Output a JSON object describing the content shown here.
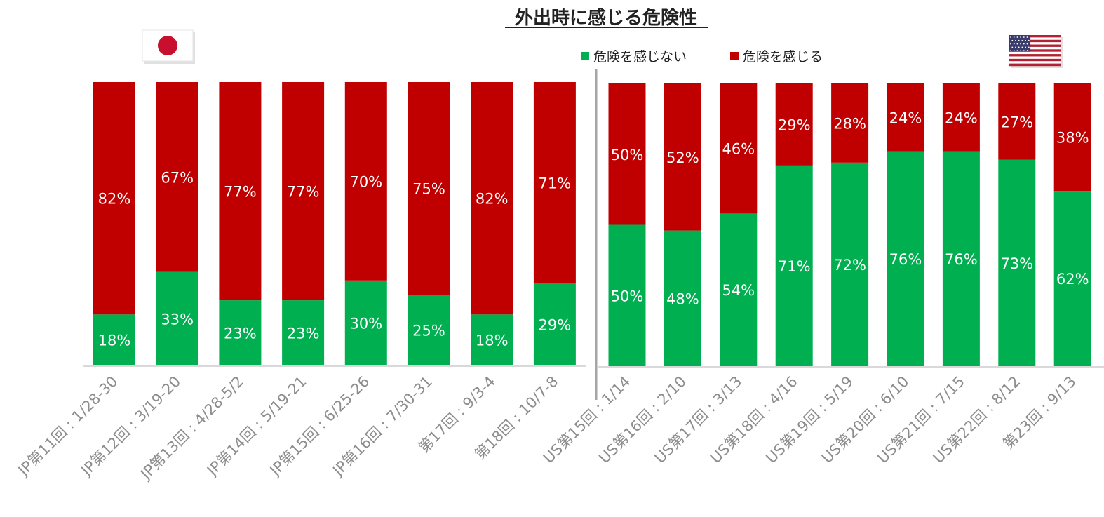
{
  "chart_data": {
    "type": "bar",
    "title": "外出時に感じる危険性",
    "legend": [
      {
        "label": "危険を感じない",
        "color": "#00b050"
      },
      {
        "label": "危険を感じる",
        "color": "#c00000"
      }
    ],
    "legend_position": "top",
    "grid": false,
    "panels": [
      {
        "name": "JP",
        "flag": "japan-flag",
        "categories": [
          "JP第11回 : 1/28-30",
          "JP第12回 : 3/19-20",
          "JP第13回 : 4/28-5/2",
          "JP第14回 : 5/19-21",
          "JP第15回 : 6/25-26",
          "JP第16回 : 7/30-31",
          "第17回 : 9/3-4",
          "第18回 : 10/7-8"
        ],
        "series": [
          {
            "name": "危険を感じない",
            "values": [
              18,
              33,
              23,
              23,
              30,
              25,
              18,
              29
            ]
          },
          {
            "name": "危険を感じる",
            "values": [
              82,
              67,
              77,
              77,
              70,
              75,
              82,
              71
            ]
          }
        ]
      },
      {
        "name": "US",
        "flag": "usa-flag",
        "categories": [
          "US第15回 : 1/14",
          "US第16回 : 2/10",
          "US第17回 : 3/13",
          "US第18回 : 4/16",
          "US第19回 : 5/19",
          "US第20回 : 6/10",
          "US第21回 : 7/15",
          "US第22回 : 8/12",
          "第23回 : 9/13"
        ],
        "series": [
          {
            "name": "危険を感じない",
            "values": [
              50,
              48,
              54,
              71,
              72,
              76,
              76,
              73,
              62
            ]
          },
          {
            "name": "危険を感じる",
            "values": [
              50,
              52,
              46,
              29,
              28,
              24,
              24,
              27,
              38
            ]
          }
        ]
      }
    ],
    "value_suffix": "%",
    "ylim": [
      0,
      100
    ]
  }
}
